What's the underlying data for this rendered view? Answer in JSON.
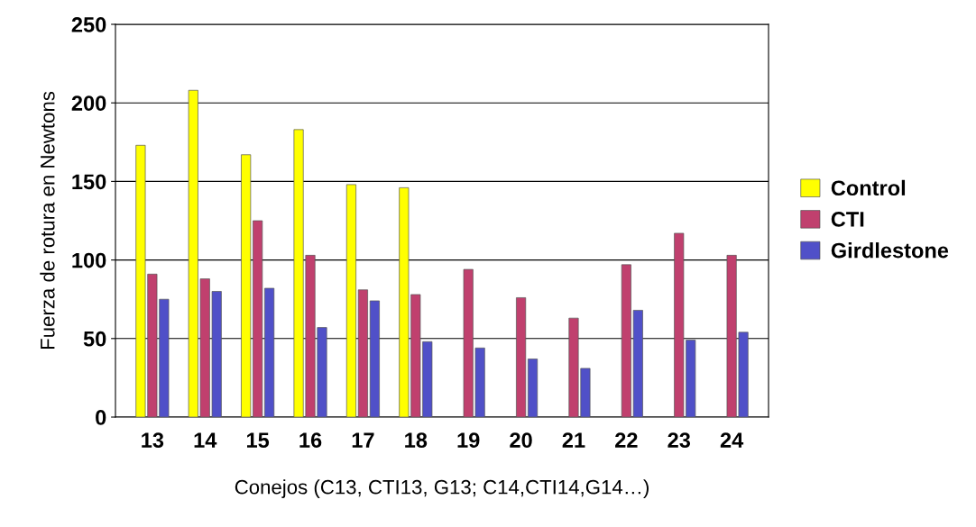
{
  "chart_data": {
    "type": "bar",
    "xlabel": "Conejos (C13, CTI13, G13; C14,CTI14,G14…)",
    "ylabel": "Fuerza de rotura en Newtons",
    "categories": [
      "13",
      "14",
      "15",
      "16",
      "17",
      "18",
      "19",
      "20",
      "21",
      "22",
      "23",
      "24"
    ],
    "series": [
      {
        "name": "Control",
        "color": "#ffff00",
        "values": [
          173,
          208,
          167,
          183,
          148,
          146,
          null,
          null,
          null,
          null,
          null,
          null
        ]
      },
      {
        "name": "CTI",
        "color": "#c0406e",
        "values": [
          91,
          88,
          125,
          103,
          81,
          78,
          94,
          76,
          63,
          97,
          117,
          103
        ]
      },
      {
        "name": "Girdlestone",
        "color": "#5050c8",
        "values": [
          75,
          80,
          82,
          57,
          74,
          48,
          44,
          37,
          31,
          68,
          49,
          54
        ]
      }
    ],
    "ylim": [
      0,
      250
    ],
    "yticks": [
      0,
      50,
      100,
      150,
      200,
      250
    ],
    "grid": "y",
    "legend": "right"
  }
}
